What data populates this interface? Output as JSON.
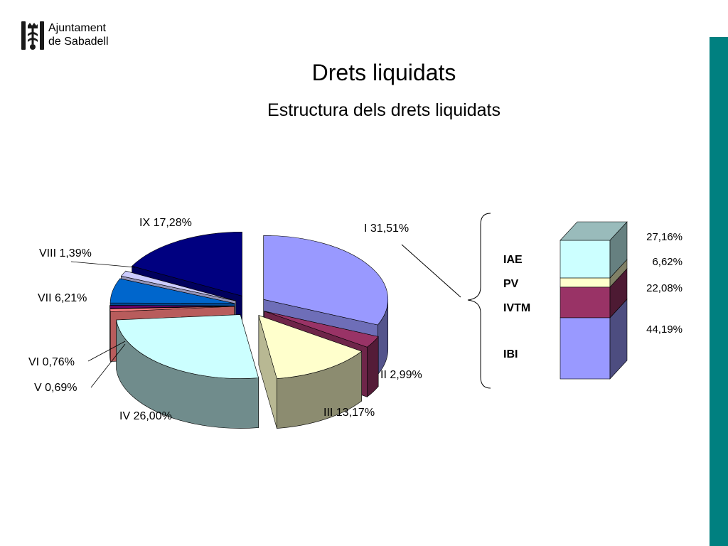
{
  "logo": {
    "line1": "Ajuntament",
    "line2": "de Sabadell"
  },
  "header": {
    "title": "Drets liquidats",
    "subtitle": "Estructura dels drets liquidats"
  },
  "colors": {
    "accent_bar": "#008080"
  },
  "chart_data": [
    {
      "type": "pie",
      "title": "",
      "slices": [
        {
          "label": "I 31,51%",
          "name": "I",
          "value": 31.51,
          "color": "#9999ff"
        },
        {
          "label": "II 2,99%",
          "name": "II",
          "value": 2.99,
          "color": "#993366"
        },
        {
          "label": "III 13,17%",
          "name": "III",
          "value": 13.17,
          "color": "#ffffcc"
        },
        {
          "label": "IV 26,00%",
          "name": "IV",
          "value": 26.0,
          "color": "#ccffff"
        },
        {
          "label": "V 0,69%",
          "name": "V",
          "value": 0.69,
          "color": "#ff8080"
        },
        {
          "label": "VI 0,76%",
          "name": "VI",
          "value": 0.76,
          "color": "#660066"
        },
        {
          "label": "VII 6,21%",
          "name": "VII",
          "value": 6.21,
          "color": "#0066cc"
        },
        {
          "label": "VIII 1,39%",
          "name": "VIII",
          "value": 1.39,
          "color": "#ccccff"
        },
        {
          "label": "IX 17,28%",
          "name": "IX",
          "value": 17.28,
          "color": "#000080"
        }
      ],
      "exploded": true,
      "three_d": true
    },
    {
      "type": "bar",
      "stacked": true,
      "three_d": true,
      "breakdown_of": "I",
      "segments": [
        {
          "name": "IBI",
          "label": "IBI",
          "value": 44.19,
          "value_label": "44,19%",
          "color": "#9999ff"
        },
        {
          "name": "IVTM",
          "label": "IVTM",
          "value": 22.08,
          "value_label": "22,08%",
          "color": "#993366"
        },
        {
          "name": "PV",
          "label": "PV",
          "value": 6.62,
          "value_label": "6,62%",
          "color": "#ffffcc"
        },
        {
          "name": "IAE",
          "label": "IAE",
          "value": 27.16,
          "value_label": "27,16%",
          "color": "#ccffff"
        }
      ]
    }
  ]
}
